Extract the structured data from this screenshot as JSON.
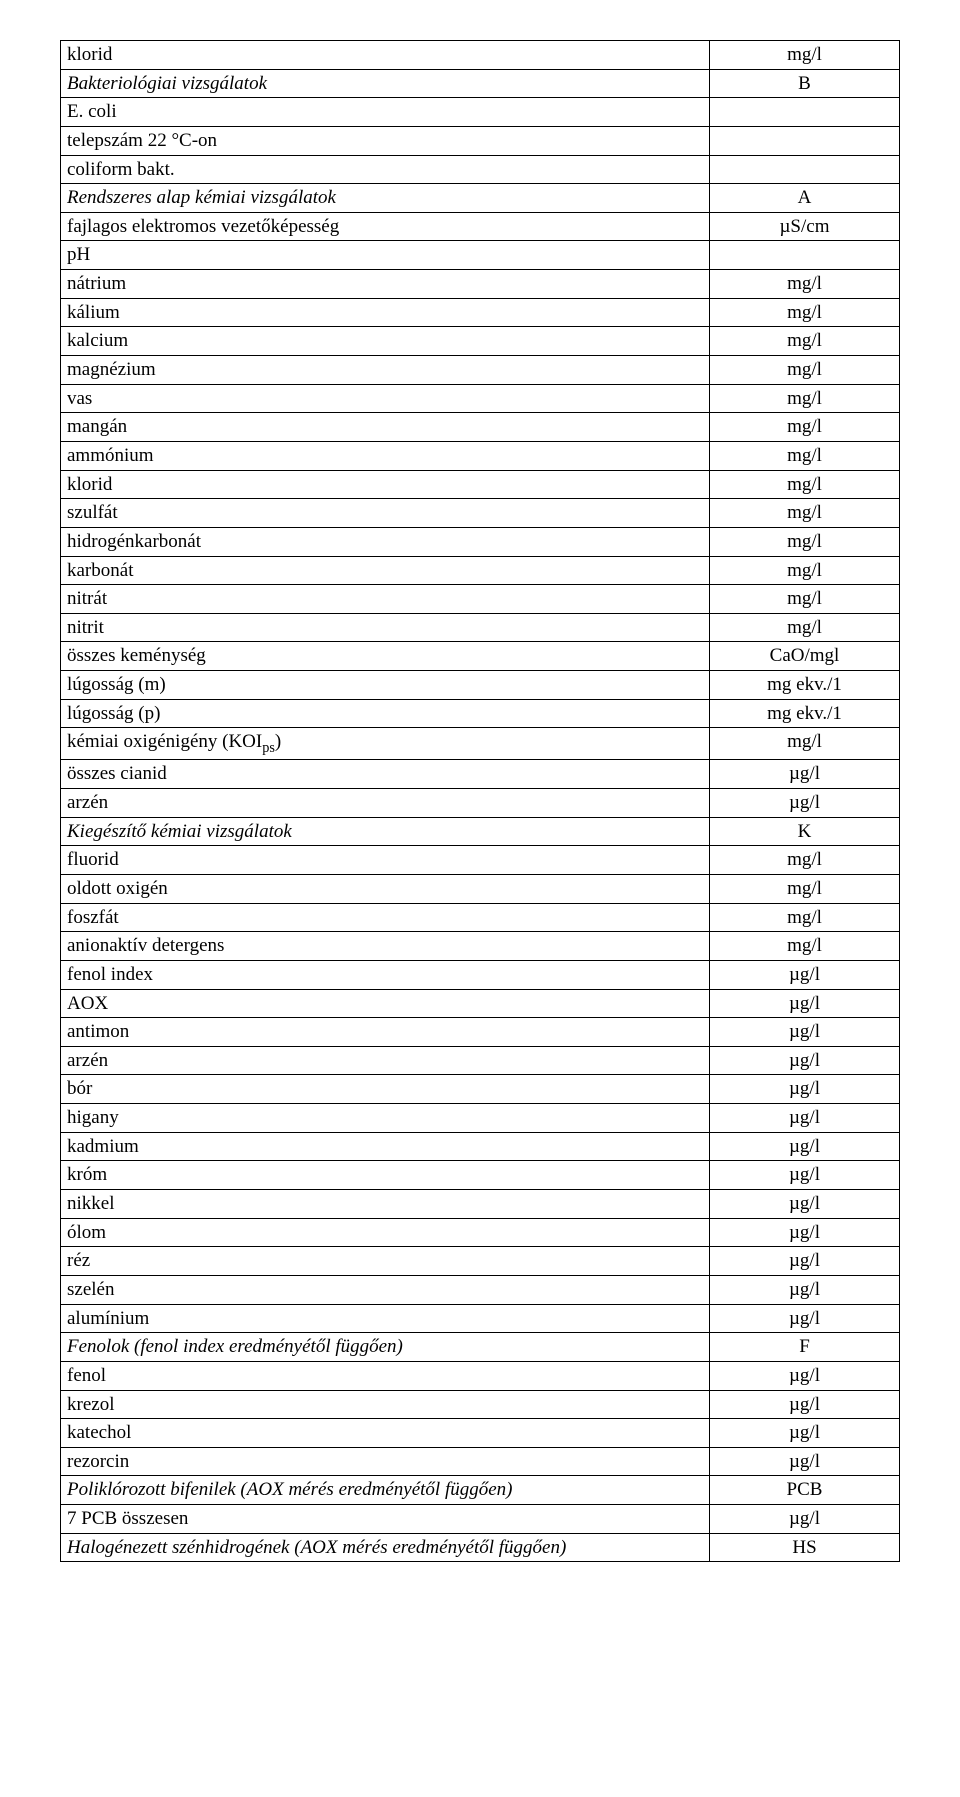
{
  "rows": [
    {
      "c1": "klorid",
      "c2": "mg/l",
      "c1Class": "",
      "c2Class": ""
    },
    {
      "c1": "Bakteriológiai vizsgálatok",
      "c2": "B",
      "c1Class": "center italic",
      "c2Class": ""
    },
    {
      "c1": "E. coli",
      "c2": "",
      "c1Class": "",
      "c2Class": ""
    },
    {
      "c1": "telepszám 22 °C-on",
      "c2": "",
      "c1Class": "",
      "c2Class": ""
    },
    {
      "c1": "coliform bakt.",
      "c2": "",
      "c1Class": "",
      "c2Class": ""
    },
    {
      "c1": "Rendszeres alap kémiai vizsgálatok",
      "c2": "A",
      "c1Class": "center italic",
      "c2Class": ""
    },
    {
      "c1": "fajlagos elektromos vezetőképesség",
      "c2": "µS/cm",
      "c1Class": "",
      "c2Class": ""
    },
    {
      "c1": "pH",
      "c2": "",
      "c1Class": "",
      "c2Class": ""
    },
    {
      "c1": "nátrium",
      "c2": "mg/l",
      "c1Class": "",
      "c2Class": ""
    },
    {
      "c1": "kálium",
      "c2": "mg/l",
      "c1Class": "",
      "c2Class": ""
    },
    {
      "c1": "kalcium",
      "c2": "mg/l",
      "c1Class": "",
      "c2Class": ""
    },
    {
      "c1": "magnézium",
      "c2": "mg/l",
      "c1Class": "",
      "c2Class": ""
    },
    {
      "c1": "vas",
      "c2": "mg/l",
      "c1Class": "",
      "c2Class": ""
    },
    {
      "c1": "mangán",
      "c2": "mg/l",
      "c1Class": "",
      "c2Class": ""
    },
    {
      "c1": "ammónium",
      "c2": "mg/l",
      "c1Class": "",
      "c2Class": ""
    },
    {
      "c1": "klorid",
      "c2": "mg/l",
      "c1Class": "",
      "c2Class": ""
    },
    {
      "c1": "szulfát",
      "c2": "mg/l",
      "c1Class": "",
      "c2Class": ""
    },
    {
      "c1": "hidrogénkarbonát",
      "c2": "mg/l",
      "c1Class": "",
      "c2Class": ""
    },
    {
      "c1": "karbonát",
      "c2": "mg/l",
      "c1Class": "",
      "c2Class": ""
    },
    {
      "c1": "nitrát",
      "c2": "mg/l",
      "c1Class": "",
      "c2Class": ""
    },
    {
      "c1": "nitrit",
      "c2": "mg/l",
      "c1Class": "",
      "c2Class": ""
    },
    {
      "c1": "összes keménység",
      "c2": "CaO/mgl",
      "c1Class": "",
      "c2Class": ""
    },
    {
      "c1": "lúgosság (m)",
      "c2": "mg ekv./1",
      "c1Class": "",
      "c2Class": ""
    },
    {
      "c1": "lúgosság (p)",
      "c2": "mg ekv./1",
      "c1Class": "",
      "c2Class": ""
    },
    {
      "c1": "kémiai oxigénigény (KOI<span class=\"sub\">ps</span>)",
      "c2": "mg/l",
      "c1Class": "",
      "c2Class": "",
      "html": true
    },
    {
      "c1": "összes cianid",
      "c2": "µg/l",
      "c1Class": "",
      "c2Class": ""
    },
    {
      "c1": "arzén",
      "c2": "µg/l",
      "c1Class": "",
      "c2Class": ""
    },
    {
      "c1": "Kiegészítő kémiai vizsgálatok",
      "c2": "K",
      "c1Class": "center italic",
      "c2Class": ""
    },
    {
      "c1": "fluorid",
      "c2": "mg/l",
      "c1Class": "",
      "c2Class": ""
    },
    {
      "c1": "oldott oxigén",
      "c2": "mg/l",
      "c1Class": "",
      "c2Class": ""
    },
    {
      "c1": "foszfát",
      "c2": "mg/l",
      "c1Class": "",
      "c2Class": ""
    },
    {
      "c1": "anionaktív detergens",
      "c2": "mg/l",
      "c1Class": "",
      "c2Class": ""
    },
    {
      "c1": "fenol index",
      "c2": "µg/l",
      "c1Class": "",
      "c2Class": ""
    },
    {
      "c1": "AOX",
      "c2": "µg/l",
      "c1Class": "",
      "c2Class": ""
    },
    {
      "c1": "antimon",
      "c2": "µg/l",
      "c1Class": "",
      "c2Class": ""
    },
    {
      "c1": "arzén",
      "c2": "µg/l",
      "c1Class": "",
      "c2Class": ""
    },
    {
      "c1": "bór",
      "c2": "µg/l",
      "c1Class": "",
      "c2Class": ""
    },
    {
      "c1": "higany",
      "c2": "µg/l",
      "c1Class": "",
      "c2Class": ""
    },
    {
      "c1": "kadmium",
      "c2": "µg/l",
      "c1Class": "",
      "c2Class": ""
    },
    {
      "c1": "króm",
      "c2": "µg/l",
      "c1Class": "",
      "c2Class": ""
    },
    {
      "c1": "nikkel",
      "c2": "µg/l",
      "c1Class": "",
      "c2Class": ""
    },
    {
      "c1": "ólom",
      "c2": "µg/l",
      "c1Class": "",
      "c2Class": ""
    },
    {
      "c1": "réz",
      "c2": "µg/l",
      "c1Class": "",
      "c2Class": ""
    },
    {
      "c1": "szelén",
      "c2": "µg/l",
      "c1Class": "",
      "c2Class": ""
    },
    {
      "c1": "alumínium",
      "c2": "µg/l",
      "c1Class": "",
      "c2Class": ""
    },
    {
      "c1": "Fenolok (fenol index eredményétől függően)",
      "c2": "F",
      "c1Class": "center italic",
      "c2Class": ""
    },
    {
      "c1": "fenol",
      "c2": "µg/l",
      "c1Class": "",
      "c2Class": ""
    },
    {
      "c1": "krezol",
      "c2": "µg/l",
      "c1Class": "",
      "c2Class": ""
    },
    {
      "c1": "katechol",
      "c2": "µg/l",
      "c1Class": "",
      "c2Class": ""
    },
    {
      "c1": "rezorcin",
      "c2": "µg/l",
      "c1Class": "",
      "c2Class": ""
    },
    {
      "c1": "Poliklórozott bifenilek (AOX mérés eredményétől függően)",
      "c2": "PCB",
      "c1Class": "center italic",
      "c2Class": ""
    },
    {
      "c1": "7 PCB összesen",
      "c2": "µg/l",
      "c1Class": "",
      "c2Class": ""
    },
    {
      "c1": "Halogénezett szénhidrogének (AOX mérés eredményétől függően)",
      "c2": "HS",
      "c1Class": "center italic",
      "c2Class": ""
    }
  ]
}
